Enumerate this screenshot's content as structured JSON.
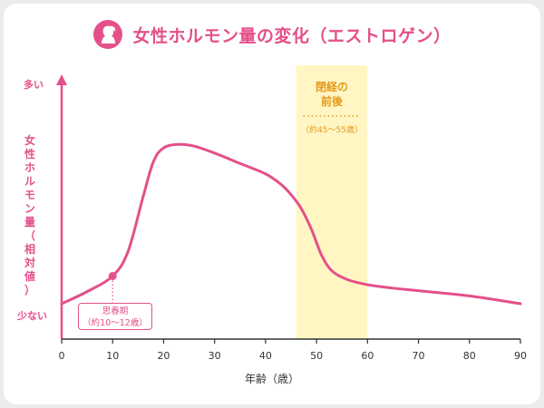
{
  "title": "女性ホルモン量の変化（エストロゲン）",
  "icon": "woman-silhouette-icon",
  "colors": {
    "accent": "#e4508a",
    "menopause_band": "#fff6c4",
    "menopause_text": "#e49a1e"
  },
  "y_axis": {
    "high_label": "多い",
    "low_label": "少ない",
    "title": [
      "女",
      "性",
      "ホ",
      "ル",
      "モ",
      "ン",
      "量",
      "（",
      "相",
      "対",
      "値",
      "）"
    ]
  },
  "menopause": {
    "label_line1": "閉経の",
    "label_line2": "前後",
    "age_range": "（約45〜55歳）"
  },
  "puberty": {
    "label": "思春期",
    "age_range": "（約10〜12歳）"
  },
  "chart_data": {
    "type": "line",
    "title": "女性ホルモン量の変化（エストロゲン）",
    "xlabel": "年齢（歳）",
    "ylabel": "女性ホルモン量（相対値）",
    "xlim": [
      0,
      90
    ],
    "ylim": [
      0,
      100
    ],
    "x_ticks": [
      "0",
      "10",
      "20",
      "30",
      "40",
      "50",
      "60",
      "70",
      "80",
      "90"
    ],
    "series": [
      {
        "x": [
          0,
          5,
          10,
          13,
          16,
          18,
          20,
          23,
          26,
          30,
          35,
          40,
          43,
          45,
          47,
          49,
          51,
          53,
          56,
          60,
          65,
          70,
          80,
          90
        ],
        "y": [
          0,
          7,
          16,
          30,
          62,
          82,
          90,
          92,
          91,
          87,
          81,
          75,
          69,
          63,
          55,
          43,
          28,
          19,
          14,
          11,
          9,
          7.5,
          4.5,
          0
        ]
      }
    ],
    "highlight_band": {
      "x_range": [
        46,
        60
      ]
    },
    "puberty_point": {
      "x": 10,
      "y": 16
    },
    "grid": false
  }
}
